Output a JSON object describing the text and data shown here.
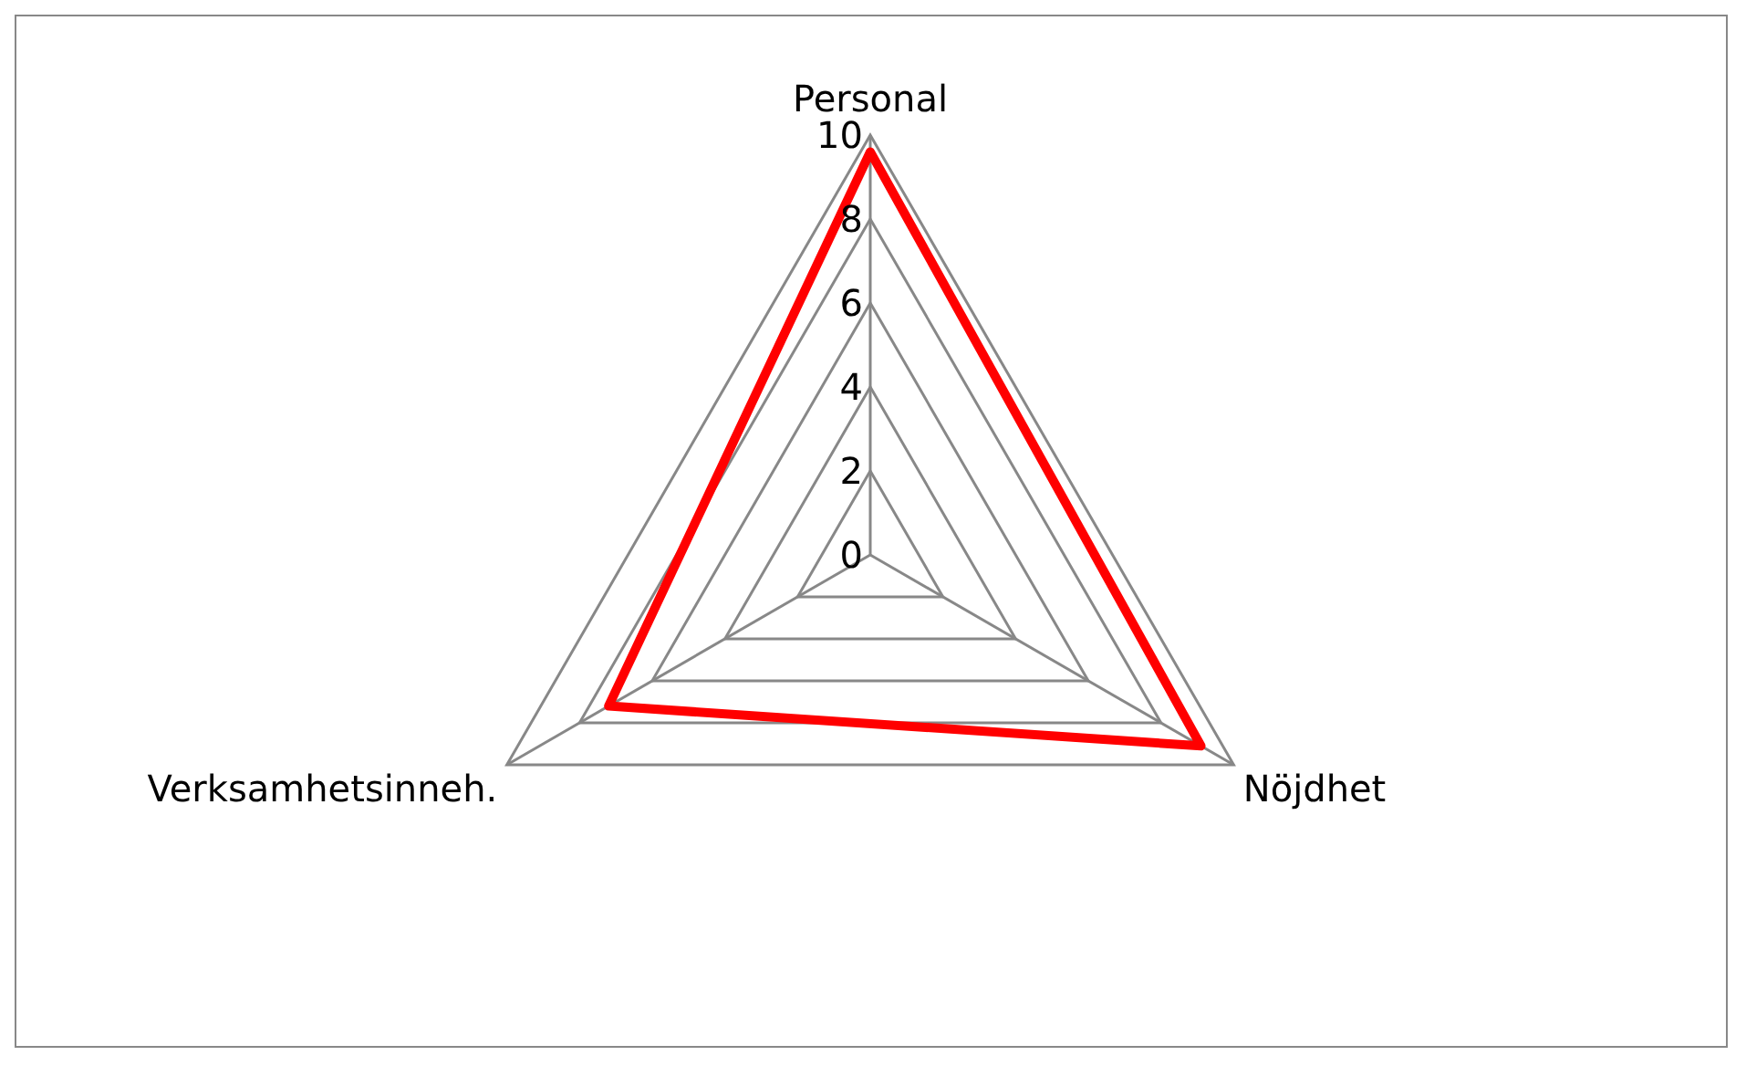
{
  "chart_data": {
    "type": "radar",
    "categories": [
      "Personal",
      "Nöjdhet",
      "Verksamhetsinneh."
    ],
    "series": [
      {
        "color": "#ff0000",
        "values": [
          9.6,
          9.1,
          7.2
        ]
      }
    ],
    "ylim": [
      0,
      10
    ],
    "yticks": [
      0,
      2,
      4,
      6,
      8,
      10
    ],
    "grid": true,
    "legend": false,
    "marker": "none"
  }
}
